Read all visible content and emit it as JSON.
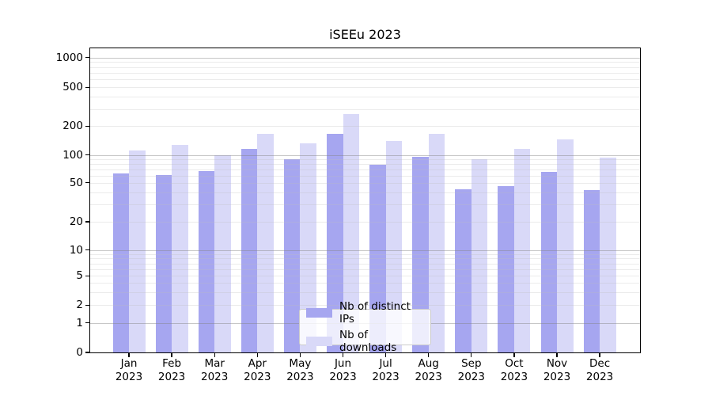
{
  "title": "iSEEu 2023",
  "chart_data": {
    "type": "bar",
    "title": "iSEEu 2023",
    "categories": [
      "Jan",
      "Feb",
      "Mar",
      "Apr",
      "May",
      "Jun",
      "Jul",
      "Aug",
      "Sep",
      "Oct",
      "Nov",
      "Dec"
    ],
    "tick_year": "2023",
    "series": [
      {
        "name": "Nb of distinct IPs",
        "color": "#a6a6f0",
        "values": [
          63,
          61,
          67,
          115,
          91,
          165,
          78,
          96,
          43,
          46,
          66,
          42
        ]
      },
      {
        "name": "Nb of downloads",
        "color": "#d9d9f8",
        "values": [
          112,
          127,
          99,
          168,
          132,
          266,
          140,
          165,
          91,
          117,
          146,
          93
        ]
      }
    ],
    "yticks": [
      0,
      1,
      2,
      5,
      10,
      20,
      50,
      100,
      200,
      500,
      1000
    ],
    "yscale": "symlog",
    "ylim": [
      0,
      1400
    ],
    "xlabel": "",
    "ylabel": "",
    "grid": true,
    "legend_position": "lower center",
    "background_color": "#ffffff",
    "major_grid_values": [
      1,
      10,
      100,
      1000
    ]
  }
}
